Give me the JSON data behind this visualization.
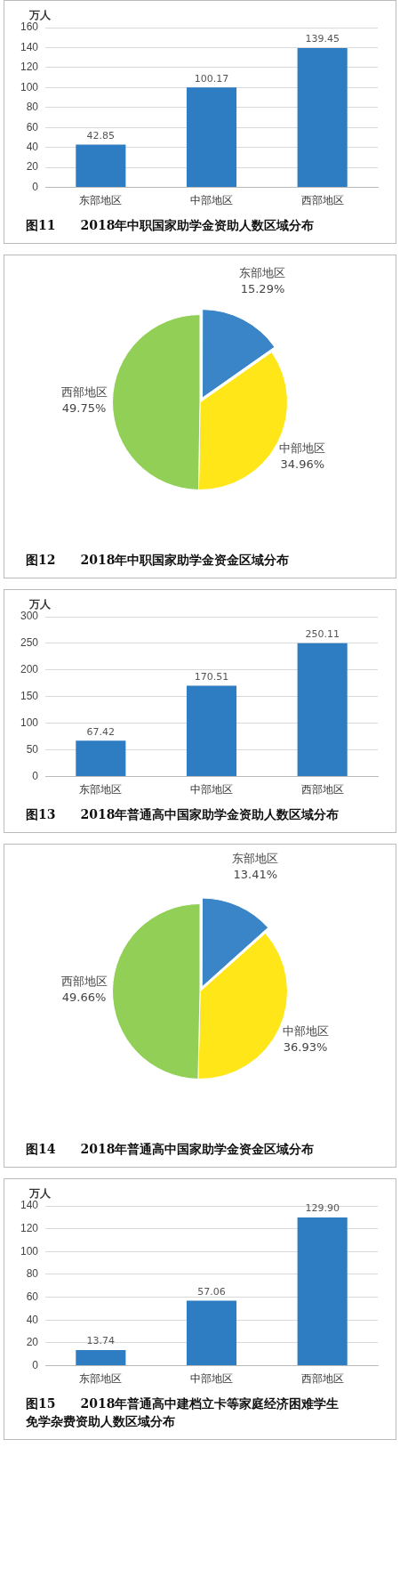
{
  "chart_data": [
    {
      "type": "bar",
      "title": "图11　　2018年中职国家助学金资助人数区域分布",
      "ylabel": "万人",
      "categories": [
        "东部地区",
        "中部地区",
        "西部地区"
      ],
      "values": [
        42.85,
        100.17,
        139.45
      ],
      "value_labels": [
        "42.85",
        "100.17",
        "139.45"
      ],
      "color": "#2e7dc2",
      "ylim": [
        0,
        160
      ],
      "yticks": [
        0,
        20,
        40,
        60,
        80,
        100,
        120,
        140,
        160
      ],
      "grid": "y",
      "legend": false
    },
    {
      "type": "pie",
      "title": "图12　　2018年中职国家助学金资金区域分布",
      "categories": [
        "东部地区",
        "中部地区",
        "西部地区"
      ],
      "values": [
        15.29,
        34.96,
        49.75
      ],
      "value_labels": [
        "15.29%",
        "34.96%",
        "49.75%"
      ],
      "colors": [
        "#3a84c8",
        "#ffe619",
        "#92cf57"
      ],
      "legend": false
    },
    {
      "type": "bar",
      "title": "图13　　2018年普通高中国家助学金资助人数区域分布",
      "ylabel": "万人",
      "categories": [
        "东部地区",
        "中部地区",
        "西部地区"
      ],
      "values": [
        67.42,
        170.51,
        250.11
      ],
      "value_labels": [
        "67.42",
        "170.51",
        "250.11"
      ],
      "color": "#2e7dc2",
      "ylim": [
        0,
        300
      ],
      "yticks": [
        0,
        50,
        100,
        150,
        200,
        250,
        300
      ],
      "grid": "y",
      "legend": false
    },
    {
      "type": "pie",
      "title": "图14　　2018年普通高中国家助学金资金区域分布",
      "categories": [
        "东部地区",
        "中部地区",
        "西部地区"
      ],
      "values": [
        13.41,
        36.93,
        49.66
      ],
      "value_labels": [
        "13.41%",
        "36.93%",
        "49.66%"
      ],
      "colors": [
        "#3a84c8",
        "#ffe619",
        "#92cf57"
      ],
      "legend": false
    },
    {
      "type": "bar",
      "title": "图15　　2018年普通高中建档立卡等家庭经济困难学生免学杂费资助人数区域分布",
      "ylabel": "万人",
      "categories": [
        "东部地区",
        "中部地区",
        "西部地区"
      ],
      "values": [
        13.74,
        57.06,
        129.9
      ],
      "value_labels": [
        "13.74",
        "57.06",
        "129.90"
      ],
      "color": "#2e7dc2",
      "ylim": [
        0,
        140
      ],
      "yticks": [
        0,
        20,
        40,
        60,
        80,
        100,
        120,
        140
      ],
      "grid": "y",
      "legend": false
    }
  ]
}
